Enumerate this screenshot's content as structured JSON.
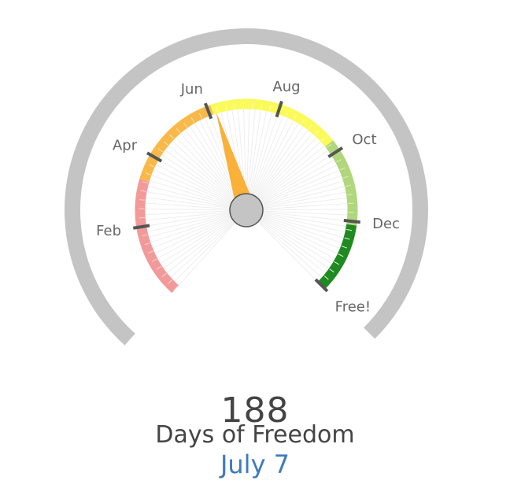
{
  "gauge": {
    "value": "188",
    "caption": "Days of Freedom",
    "date": "July 7"
  },
  "chart_data": {
    "type": "gauge",
    "title": "",
    "value": 188,
    "value_label": "Days of Freedom",
    "date_label": "July 7",
    "needle_value": 6.2,
    "scale_min": 0,
    "scale_max": 14,
    "scale_labels": [
      {
        "label": "Feb",
        "value": 2
      },
      {
        "label": "Apr",
        "value": 4
      },
      {
        "label": "Jun",
        "value": 6
      },
      {
        "label": "Aug",
        "value": 8
      },
      {
        "label": "Oct",
        "value": 10
      },
      {
        "label": "Dec",
        "value": 12
      },
      {
        "label": "Free!",
        "value": 14
      }
    ],
    "bands": [
      {
        "from": 0,
        "to": 3.3,
        "color": "#f29a9a"
      },
      {
        "from": 3.3,
        "to": 6.1,
        "color": "#f9b94a"
      },
      {
        "from": 6.1,
        "to": 9.7,
        "color": "#fafa5a"
      },
      {
        "from": 9.7,
        "to": 12.1,
        "color": "#b1d77c"
      },
      {
        "from": 12.1,
        "to": 14,
        "color": "#1f8a1f"
      }
    ],
    "outer_ring_color": "#c4c4c4",
    "needle_color": "#f9b13a",
    "hub_color": "#c4c4c4",
    "major_tick_color": "#555555"
  }
}
